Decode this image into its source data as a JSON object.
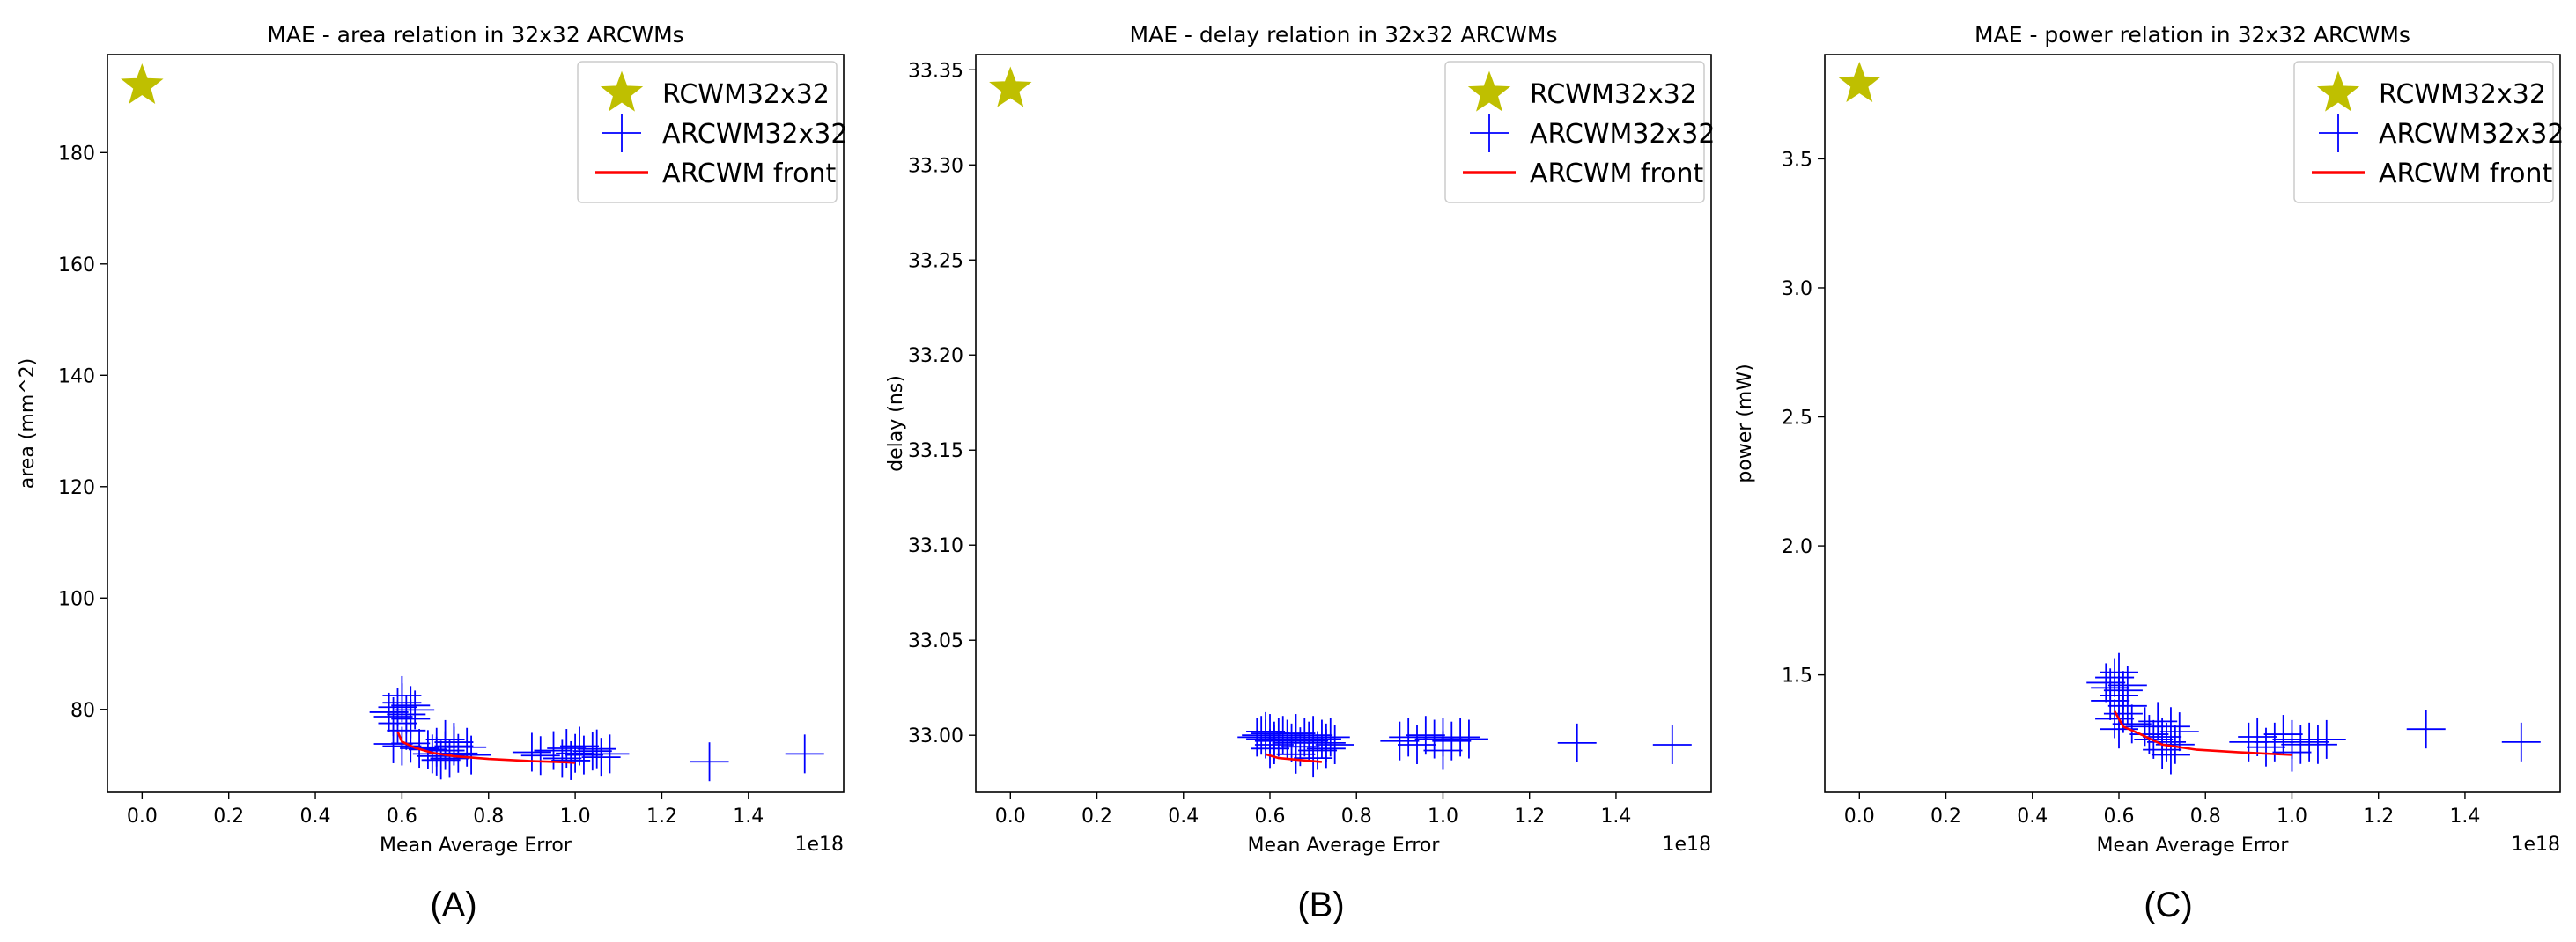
{
  "figure": {
    "captions": [
      "(A)",
      "(B)",
      "(C)"
    ]
  },
  "chart_data": [
    {
      "type": "scatter",
      "title": "MAE - area relation in 32x32 ARCWMs",
      "xlabel": "Mean Average Error",
      "ylabel": "area (mm^2)",
      "x_offset_text": "1e18",
      "xlim": [
        -0.08,
        1.62
      ],
      "ylim": [
        65.1,
        197.6
      ],
      "xticks": [
        0.0,
        0.2,
        0.4,
        0.6,
        0.8,
        1.0,
        1.2,
        1.4
      ],
      "xtick_labels": [
        "0.0",
        "0.2",
        "0.4",
        "0.6",
        "0.8",
        "1.0",
        "1.2",
        "1.4"
      ],
      "yticks": [
        80,
        100,
        120,
        140,
        160,
        180
      ],
      "ytick_labels": [
        "80",
        "100",
        "120",
        "140",
        "160",
        "180"
      ],
      "legend": {
        "position": "top-right",
        "entries": [
          "RCWM32x32",
          "ARCWM32x32",
          "ARCWM front"
        ]
      },
      "series": [
        {
          "name": "RCWM32x32",
          "marker": "star",
          "color": "#bfbf00",
          "points": [
            [
              0.0,
              192.0
            ]
          ]
        },
        {
          "name": "ARCWM32x32",
          "marker": "plus",
          "color": "#0000ff",
          "points": [
            [
              0.57,
              79.5
            ],
            [
              0.58,
              78.7
            ],
            [
              0.59,
              80.4
            ],
            [
              0.6,
              81.2
            ],
            [
              0.61,
              79.1
            ],
            [
              0.62,
              78.3
            ],
            [
              0.6,
              82.5
            ],
            [
              0.59,
              77.5
            ],
            [
              0.61,
              76.2
            ],
            [
              0.63,
              79.9
            ],
            [
              0.62,
              80.7
            ],
            [
              0.58,
              73.8
            ],
            [
              0.6,
              73.4
            ],
            [
              0.62,
              73.9
            ],
            [
              0.64,
              73.0
            ],
            [
              0.66,
              72.8
            ],
            [
              0.68,
              73.2
            ],
            [
              0.7,
              72.6
            ],
            [
              0.72,
              73.4
            ],
            [
              0.7,
              74.6
            ],
            [
              0.68,
              71.6
            ],
            [
              0.71,
              71.2
            ],
            [
              0.73,
              72.1
            ],
            [
              0.75,
              73.2
            ],
            [
              0.76,
              71.8
            ],
            [
              0.67,
              72.0
            ],
            [
              0.69,
              70.9
            ],
            [
              0.72,
              74.1
            ],
            [
              0.9,
              72.3
            ],
            [
              0.92,
              71.7
            ],
            [
              0.95,
              72.6
            ],
            [
              0.97,
              71.2
            ],
            [
              0.98,
              73.0
            ],
            [
              1.0,
              72.1
            ],
            [
              1.02,
              71.8
            ],
            [
              1.04,
              72.5
            ],
            [
              1.06,
              71.4
            ],
            [
              1.08,
              72.0
            ],
            [
              0.99,
              70.8
            ],
            [
              1.01,
              73.4
            ],
            [
              1.05,
              72.9
            ],
            [
              1.31,
              70.6
            ],
            [
              1.53,
              72.0
            ]
          ]
        },
        {
          "name": "ARCWM front",
          "marker": "line",
          "color": "#ff0000",
          "points": [
            [
              0.59,
              76.0
            ],
            [
              0.6,
              74.2
            ],
            [
              0.63,
              73.1
            ],
            [
              0.67,
              72.2
            ],
            [
              0.72,
              71.6
            ],
            [
              0.8,
              71.1
            ],
            [
              0.9,
              70.7
            ],
            [
              0.98,
              70.5
            ],
            [
              1.0,
              70.4
            ]
          ]
        }
      ]
    },
    {
      "type": "scatter",
      "title": "MAE - delay relation in 32x32 ARCWMs",
      "xlabel": "Mean Average Error",
      "ylabel": "delay (ns)",
      "x_offset_text": "1e18",
      "xlim": [
        -0.08,
        1.62
      ],
      "ylim": [
        32.97,
        33.358
      ],
      "xticks": [
        0.0,
        0.2,
        0.4,
        0.6,
        0.8,
        1.0,
        1.2,
        1.4
      ],
      "xtick_labels": [
        "0.0",
        "0.2",
        "0.4",
        "0.6",
        "0.8",
        "1.0",
        "1.2",
        "1.4"
      ],
      "yticks": [
        33.0,
        33.05,
        33.1,
        33.15,
        33.2,
        33.25,
        33.3,
        33.35
      ],
      "ytick_labels": [
        "33.00",
        "33.05",
        "33.10",
        "33.15",
        "33.20",
        "33.25",
        "33.30",
        "33.35"
      ],
      "legend": {
        "position": "top-right",
        "entries": [
          "RCWM32x32",
          "ARCWM32x32",
          "ARCWM front"
        ]
      },
      "series": [
        {
          "name": "RCWM32x32",
          "marker": "star",
          "color": "#bfbf00",
          "points": [
            [
              0.0,
              33.34
            ]
          ]
        },
        {
          "name": "ARCWM32x32",
          "marker": "plus",
          "color": "#0000ff",
          "points": [
            [
              0.57,
              32.999
            ],
            [
              0.58,
              33.0
            ],
            [
              0.59,
              32.998
            ],
            [
              0.6,
              33.001
            ],
            [
              0.61,
              32.997
            ],
            [
              0.62,
              32.999
            ],
            [
              0.6,
              32.993
            ],
            [
              0.59,
              33.002
            ],
            [
              0.61,
              32.995
            ],
            [
              0.63,
              33.0
            ],
            [
              0.64,
              32.998
            ],
            [
              0.65,
              32.996
            ],
            [
              0.66,
              33.001
            ],
            [
              0.67,
              32.994
            ],
            [
              0.68,
              32.999
            ],
            [
              0.69,
              32.997
            ],
            [
              0.7,
              33.0
            ],
            [
              0.71,
              32.992
            ],
            [
              0.72,
              32.998
            ],
            [
              0.73,
              32.996
            ],
            [
              0.74,
              32.999
            ],
            [
              0.75,
              32.995
            ],
            [
              0.66,
              32.99
            ],
            [
              0.7,
              32.988
            ],
            [
              0.73,
              32.993
            ],
            [
              0.9,
              32.997
            ],
            [
              0.92,
              32.999
            ],
            [
              0.94,
              32.995
            ],
            [
              0.96,
              33.0
            ],
            [
              0.98,
              32.998
            ],
            [
              1.0,
              32.999
            ],
            [
              1.02,
              32.997
            ],
            [
              1.04,
              32.999
            ],
            [
              1.06,
              32.998
            ],
            [
              1.0,
              32.992
            ],
            [
              1.31,
              32.996
            ],
            [
              1.53,
              32.995
            ]
          ]
        },
        {
          "name": "ARCWM front",
          "marker": "line",
          "color": "#ff0000",
          "points": [
            [
              0.59,
              32.99
            ],
            [
              0.62,
              32.988
            ],
            [
              0.67,
              32.987
            ],
            [
              0.72,
              32.986
            ]
          ]
        }
      ]
    },
    {
      "type": "scatter",
      "title": "MAE - power relation in 32x32 ARCWMs",
      "xlabel": "Mean Average Error",
      "ylabel": "power (mW)",
      "x_offset_text": "1e18",
      "xlim": [
        -0.08,
        1.62
      ],
      "ylim": [
        1.045,
        3.904
      ],
      "xticks": [
        0.0,
        0.2,
        0.4,
        0.6,
        0.8,
        1.0,
        1.2,
        1.4
      ],
      "xtick_labels": [
        "0.0",
        "0.2",
        "0.4",
        "0.6",
        "0.8",
        "1.0",
        "1.2",
        "1.4"
      ],
      "yticks": [
        1.5,
        2.0,
        2.5,
        3.0,
        3.5
      ],
      "ytick_labels": [
        "1.5",
        "2.0",
        "2.5",
        "3.0",
        "3.5"
      ],
      "legend": {
        "position": "top-right",
        "entries": [
          "RCWM32x32",
          "ARCWM32x32",
          "ARCWM front"
        ]
      },
      "series": [
        {
          "name": "RCWM32x32",
          "marker": "star",
          "color": "#bfbf00",
          "points": [
            [
              0.0,
              3.79
            ]
          ]
        },
        {
          "name": "ARCWM32x32",
          "marker": "plus",
          "color": "#0000ff",
          "points": [
            [
              0.57,
              1.47
            ],
            [
              0.58,
              1.45
            ],
            [
              0.59,
              1.49
            ],
            [
              0.6,
              1.51
            ],
            [
              0.61,
              1.44
            ],
            [
              0.62,
              1.46
            ],
            [
              0.58,
              1.4
            ],
            [
              0.6,
              1.42
            ],
            [
              0.62,
              1.38
            ],
            [
              0.59,
              1.33
            ],
            [
              0.61,
              1.35
            ],
            [
              0.63,
              1.31
            ],
            [
              0.6,
              1.29
            ],
            [
              0.66,
              1.3
            ],
            [
              0.67,
              1.27
            ],
            [
              0.68,
              1.25
            ],
            [
              0.69,
              1.32
            ],
            [
              0.7,
              1.26
            ],
            [
              0.71,
              1.24
            ],
            [
              0.72,
              1.3
            ],
            [
              0.73,
              1.23
            ],
            [
              0.74,
              1.28
            ],
            [
              0.7,
              1.21
            ],
            [
              0.72,
              1.19
            ],
            [
              0.9,
              1.24
            ],
            [
              0.92,
              1.26
            ],
            [
              0.94,
              1.22
            ],
            [
              0.96,
              1.24
            ],
            [
              0.98,
              1.27
            ],
            [
              1.0,
              1.25
            ],
            [
              1.02,
              1.23
            ],
            [
              1.04,
              1.24
            ],
            [
              1.06,
              1.23
            ],
            [
              1.08,
              1.25
            ],
            [
              1.0,
              1.2
            ],
            [
              1.31,
              1.29
            ],
            [
              1.53,
              1.24
            ]
          ]
        },
        {
          "name": "ARCWM front",
          "marker": "line",
          "color": "#ff0000",
          "points": [
            [
              0.59,
              1.36
            ],
            [
              0.61,
              1.3
            ],
            [
              0.65,
              1.27
            ],
            [
              0.7,
              1.23
            ],
            [
              0.78,
              1.21
            ],
            [
              0.88,
              1.2
            ],
            [
              1.0,
              1.19
            ]
          ]
        }
      ]
    }
  ]
}
